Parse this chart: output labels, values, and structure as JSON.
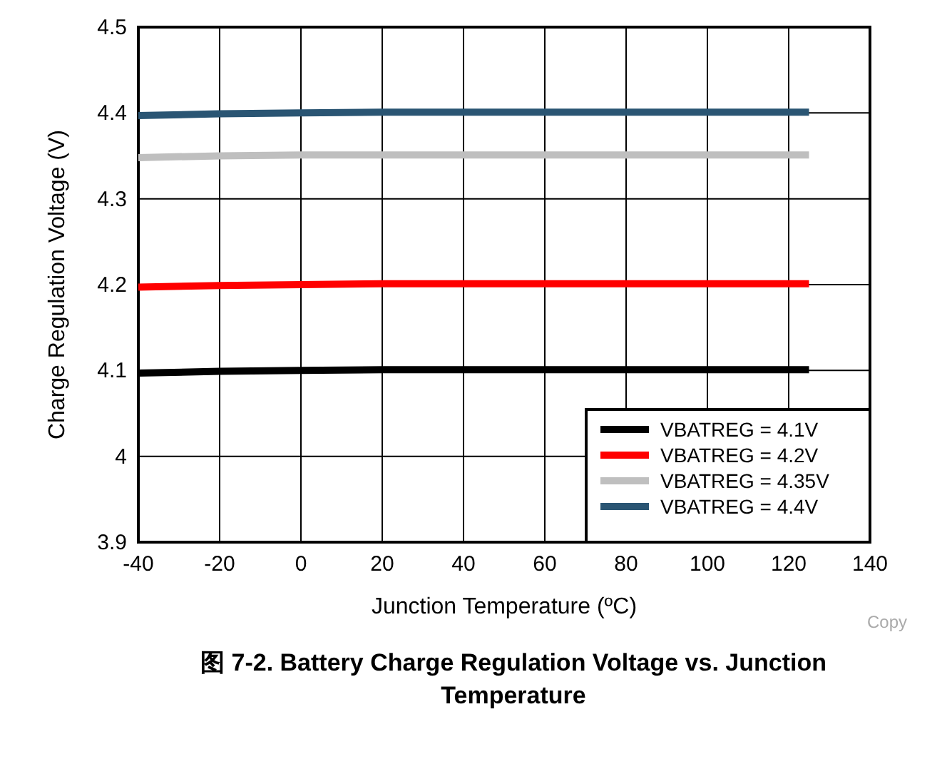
{
  "chart_data": {
    "type": "line",
    "title": "图 7-2. Battery Charge Regulation Voltage vs. Junction Temperature",
    "xlabel": "Junction Temperature (ºC)",
    "ylabel": "Charge Regulation Voltage (V)",
    "x": [
      -40,
      -20,
      0,
      20,
      40,
      60,
      80,
      100,
      125
    ],
    "series": [
      {
        "name": "VBATREG = 4.1V",
        "color": "#000000",
        "values": [
          4.097,
          4.099,
          4.1,
          4.101,
          4.101,
          4.101,
          4.101,
          4.101,
          4.101
        ]
      },
      {
        "name": "VBATREG = 4.2V",
        "color": "#ff0000",
        "values": [
          4.197,
          4.199,
          4.2,
          4.201,
          4.201,
          4.201,
          4.201,
          4.201,
          4.201
        ]
      },
      {
        "name": "VBATREG = 4.35V",
        "color": "#bfbfbf",
        "values": [
          4.348,
          4.35,
          4.351,
          4.351,
          4.351,
          4.351,
          4.351,
          4.351,
          4.351
        ]
      },
      {
        "name": "VBATREG = 4.4V",
        "color": "#2a5573",
        "values": [
          4.397,
          4.399,
          4.4,
          4.401,
          4.401,
          4.401,
          4.401,
          4.401,
          4.401
        ]
      }
    ],
    "xlim": [
      -40,
      140
    ],
    "ylim": [
      3.9,
      4.5
    ],
    "xticks": [
      -40,
      -20,
      0,
      20,
      40,
      60,
      80,
      100,
      120,
      140
    ],
    "yticks": [
      3.9,
      4,
      4.1,
      4.2,
      4.3,
      4.4,
      4.5
    ],
    "grid": true,
    "legend": "bottom right",
    "line_style": "solid",
    "marker": "none",
    "annotations": [
      "Copy"
    ]
  }
}
